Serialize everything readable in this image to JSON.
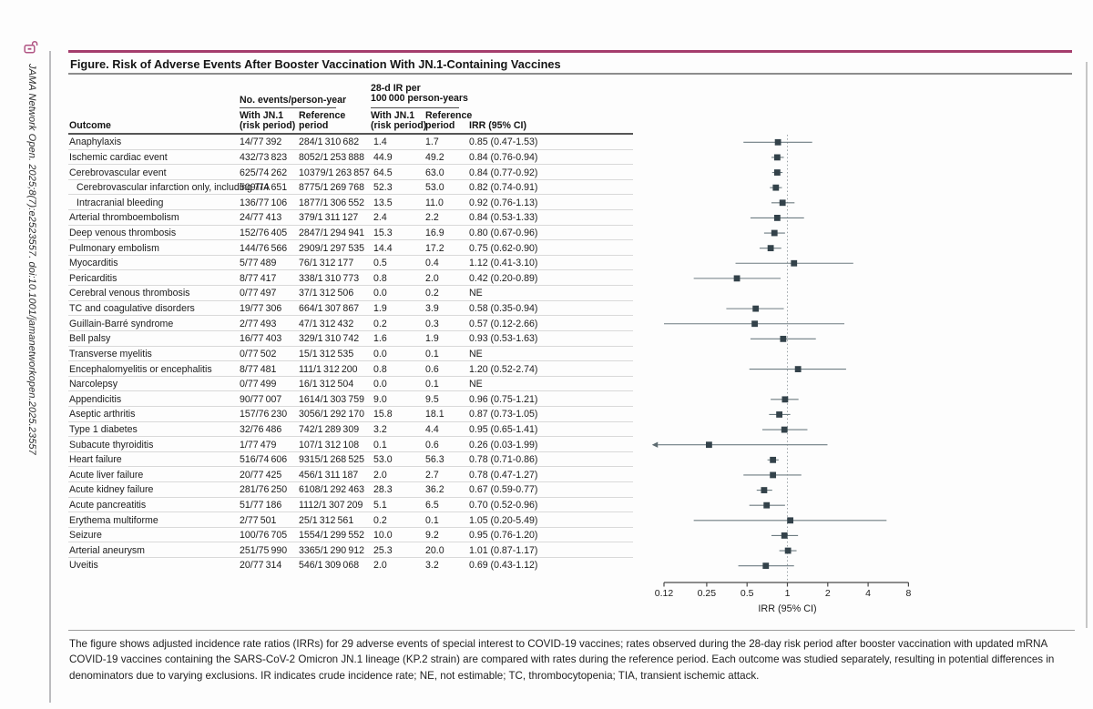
{
  "sidebar": {
    "citation": "JAMA Network Open. 2025;8(7):e2523557. doi:10.1001/jamanetworkopen.2025.23557"
  },
  "figure": {
    "title": "Figure. Risk of Adverse Events After Booster Vaccination With JN.1-Containing Vaccines",
    "accent_color": "#a43d6c"
  },
  "headers": {
    "outcome": "Outcome",
    "events_group": "No. events/person-year",
    "ir_group": "28-d IR per\n100 000 person-years",
    "with_jn1": "With JN.1\n(risk period)",
    "reference": "Reference\nperiod",
    "irr": "IRR (95% CI)"
  },
  "chart_data": {
    "type": "forest",
    "xlabel": "IRR (95% CI)",
    "x_scale": "log",
    "x_ticks": [
      0.12,
      0.25,
      0.5,
      1,
      2,
      4,
      8
    ],
    "x_range": [
      0.12,
      8
    ],
    "reference_line": 1,
    "marker_color": "#33424a",
    "ci_color": "#6e7d82",
    "rows": [
      {
        "outcome": "Anaphylaxis",
        "indent": false,
        "events_jn1": "14/77 392",
        "events_ref": "284/1 310 682",
        "ir_jn1": "1.4",
        "ir_ref": "1.7",
        "irr_label": "0.85 (0.47-1.53)",
        "irr": 0.85,
        "lo": 0.47,
        "hi": 1.53
      },
      {
        "outcome": "Ischemic cardiac event",
        "indent": false,
        "events_jn1": "432/73 823",
        "events_ref": "8052/1 253 888",
        "ir_jn1": "44.9",
        "ir_ref": "49.2",
        "irr_label": "0.84 (0.76-0.94)",
        "irr": 0.84,
        "lo": 0.76,
        "hi": 0.94
      },
      {
        "outcome": "Cerebrovascular event",
        "indent": false,
        "events_jn1": "625/74 262",
        "events_ref": "10379/1 263 857",
        "ir_jn1": "64.5",
        "ir_ref": "63.0",
        "irr_label": "0.84 (0.77-0.92)",
        "irr": 0.84,
        "lo": 0.77,
        "hi": 0.92
      },
      {
        "outcome": "Cerebrovascular infarction only, including TIA",
        "indent": true,
        "events_jn1": "509/74 651",
        "events_ref": "8775/1 269 768",
        "ir_jn1": "52.3",
        "ir_ref": "53.0",
        "irr_label": "0.82 (0.74-0.91)",
        "irr": 0.82,
        "lo": 0.74,
        "hi": 0.91
      },
      {
        "outcome": "Intracranial bleeding",
        "indent": true,
        "events_jn1": "136/77 106",
        "events_ref": "1877/1 306 552",
        "ir_jn1": "13.5",
        "ir_ref": "11.0",
        "irr_label": "0.92 (0.76-1.13)",
        "irr": 0.92,
        "lo": 0.76,
        "hi": 1.13
      },
      {
        "outcome": "Arterial thromboembolism",
        "indent": false,
        "events_jn1": "24/77 413",
        "events_ref": "379/1 311 127",
        "ir_jn1": "2.4",
        "ir_ref": "2.2",
        "irr_label": "0.84 (0.53-1.33)",
        "irr": 0.84,
        "lo": 0.53,
        "hi": 1.33
      },
      {
        "outcome": "Deep venous thrombosis",
        "indent": false,
        "events_jn1": "152/76 405",
        "events_ref": "2847/1 294 941",
        "ir_jn1": "15.3",
        "ir_ref": "16.9",
        "irr_label": "0.80 (0.67-0.96)",
        "irr": 0.8,
        "lo": 0.67,
        "hi": 0.96
      },
      {
        "outcome": "Pulmonary embolism",
        "indent": false,
        "events_jn1": "144/76 566",
        "events_ref": "2909/1 297 535",
        "ir_jn1": "14.4",
        "ir_ref": "17.2",
        "irr_label": "0.75 (0.62-0.90)",
        "irr": 0.75,
        "lo": 0.62,
        "hi": 0.9
      },
      {
        "outcome": "Myocarditis",
        "indent": false,
        "events_jn1": "5/77 489",
        "events_ref": "76/1 312 177",
        "ir_jn1": "0.5",
        "ir_ref": "0.4",
        "irr_label": "1.12 (0.41-3.10)",
        "irr": 1.12,
        "lo": 0.41,
        "hi": 3.1
      },
      {
        "outcome": "Pericarditis",
        "indent": false,
        "events_jn1": "8/77 417",
        "events_ref": "338/1 310 773",
        "ir_jn1": "0.8",
        "ir_ref": "2.0",
        "irr_label": "0.42 (0.20-0.89)",
        "irr": 0.42,
        "lo": 0.2,
        "hi": 0.89
      },
      {
        "outcome": "Cerebral venous thrombosis",
        "indent": false,
        "events_jn1": "0/77 497",
        "events_ref": "37/1 312 506",
        "ir_jn1": "0.0",
        "ir_ref": "0.2",
        "irr_label": "NE",
        "irr": null,
        "lo": null,
        "hi": null
      },
      {
        "outcome": "TC and coagulative disorders",
        "indent": false,
        "events_jn1": "19/77 306",
        "events_ref": "664/1 307 867",
        "ir_jn1": "1.9",
        "ir_ref": "3.9",
        "irr_label": "0.58 (0.35-0.94)",
        "irr": 0.58,
        "lo": 0.35,
        "hi": 0.94
      },
      {
        "outcome": "Guillain-Barré syndrome",
        "indent": false,
        "events_jn1": "2/77 493",
        "events_ref": "47/1 312 432",
        "ir_jn1": "0.2",
        "ir_ref": "0.3",
        "irr_label": "0.57 (0.12-2.66)",
        "irr": 0.57,
        "lo": 0.12,
        "hi": 2.66
      },
      {
        "outcome": "Bell palsy",
        "indent": false,
        "events_jn1": "16/77 403",
        "events_ref": "329/1 310 742",
        "ir_jn1": "1.6",
        "ir_ref": "1.9",
        "irr_label": "0.93 (0.53-1.63)",
        "irr": 0.93,
        "lo": 0.53,
        "hi": 1.63
      },
      {
        "outcome": "Transverse myelitis",
        "indent": false,
        "events_jn1": "0/77 502",
        "events_ref": "15/1 312 535",
        "ir_jn1": "0.0",
        "ir_ref": "0.1",
        "irr_label": "NE",
        "irr": null,
        "lo": null,
        "hi": null
      },
      {
        "outcome": "Encephalomyelitis or encephalitis",
        "indent": false,
        "events_jn1": "8/77 481",
        "events_ref": "111/1 312 200",
        "ir_jn1": "0.8",
        "ir_ref": "0.6",
        "irr_label": "1.20 (0.52-2.74)",
        "irr": 1.2,
        "lo": 0.52,
        "hi": 2.74
      },
      {
        "outcome": "Narcolepsy",
        "indent": false,
        "events_jn1": "0/77 499",
        "events_ref": "16/1 312 504",
        "ir_jn1": "0.0",
        "ir_ref": "0.1",
        "irr_label": "NE",
        "irr": null,
        "lo": null,
        "hi": null
      },
      {
        "outcome": "Appendicitis",
        "indent": false,
        "events_jn1": "90/77 007",
        "events_ref": "1614/1 303 759",
        "ir_jn1": "9.0",
        "ir_ref": "9.5",
        "irr_label": "0.96 (0.75-1.21)",
        "irr": 0.96,
        "lo": 0.75,
        "hi": 1.21
      },
      {
        "outcome": "Aseptic arthritis",
        "indent": false,
        "events_jn1": "157/76 230",
        "events_ref": "3056/1 292 170",
        "ir_jn1": "15.8",
        "ir_ref": "18.1",
        "irr_label": "0.87 (0.73-1.05)",
        "irr": 0.87,
        "lo": 0.73,
        "hi": 1.05
      },
      {
        "outcome": "Type 1 diabetes",
        "indent": false,
        "events_jn1": "32/76 486",
        "events_ref": "742/1 289 309",
        "ir_jn1": "3.2",
        "ir_ref": "4.4",
        "irr_label": "0.95 (0.65-1.41)",
        "irr": 0.95,
        "lo": 0.65,
        "hi": 1.41
      },
      {
        "outcome": "Subacute thyroiditis",
        "indent": false,
        "events_jn1": "1/77 479",
        "events_ref": "107/1 312 108",
        "ir_jn1": "0.1",
        "ir_ref": "0.6",
        "irr_label": "0.26 (0.03-1.99)",
        "irr": 0.26,
        "lo": 0.03,
        "hi": 1.99
      },
      {
        "outcome": "Heart failure",
        "indent": false,
        "events_jn1": "516/74 606",
        "events_ref": "9315/1 268 525",
        "ir_jn1": "53.0",
        "ir_ref": "56.3",
        "irr_label": "0.78 (0.71-0.86)",
        "irr": 0.78,
        "lo": 0.71,
        "hi": 0.86
      },
      {
        "outcome": "Acute liver failure",
        "indent": false,
        "events_jn1": "20/77 425",
        "events_ref": "456/1 311 187",
        "ir_jn1": "2.0",
        "ir_ref": "2.7",
        "irr_label": "0.78 (0.47-1.27)",
        "irr": 0.78,
        "lo": 0.47,
        "hi": 1.27
      },
      {
        "outcome": "Acute kidney failure",
        "indent": false,
        "events_jn1": "281/76 250",
        "events_ref": "6108/1 292 463",
        "ir_jn1": "28.3",
        "ir_ref": "36.2",
        "irr_label": "0.67 (0.59-0.77)",
        "irr": 0.67,
        "lo": 0.59,
        "hi": 0.77
      },
      {
        "outcome": "Acute pancreatitis",
        "indent": false,
        "events_jn1": "51/77 186",
        "events_ref": "1112/1 307 209",
        "ir_jn1": "5.1",
        "ir_ref": "6.5",
        "irr_label": "0.70 (0.52-0.96)",
        "irr": 0.7,
        "lo": 0.52,
        "hi": 0.96
      },
      {
        "outcome": "Erythema multiforme",
        "indent": false,
        "events_jn1": "2/77 501",
        "events_ref": "25/1 312 561",
        "ir_jn1": "0.2",
        "ir_ref": "0.1",
        "irr_label": "1.05 (0.20-5.49)",
        "irr": 1.05,
        "lo": 0.2,
        "hi": 5.49
      },
      {
        "outcome": "Seizure",
        "indent": false,
        "events_jn1": "100/76 705",
        "events_ref": "1554/1 299 552",
        "ir_jn1": "10.0",
        "ir_ref": "9.2",
        "irr_label": "0.95 (0.76-1.20)",
        "irr": 0.95,
        "lo": 0.76,
        "hi": 1.2
      },
      {
        "outcome": "Arterial aneurysm",
        "indent": false,
        "events_jn1": "251/75 990",
        "events_ref": "3365/1 290 912",
        "ir_jn1": "25.3",
        "ir_ref": "20.0",
        "irr_label": "1.01 (0.87-1.17)",
        "irr": 1.01,
        "lo": 0.87,
        "hi": 1.17
      },
      {
        "outcome": "Uveitis",
        "indent": false,
        "events_jn1": "20/77 314",
        "events_ref": "546/1 309 068",
        "ir_jn1": "2.0",
        "ir_ref": "3.2",
        "irr_label": "0.69 (0.43-1.12)",
        "irr": 0.69,
        "lo": 0.43,
        "hi": 1.12
      }
    ]
  },
  "caption": "The figure shows adjusted incidence rate ratios (IRRs) for 29 adverse events of special interest to COVID-19 vaccines; rates observed during the 28-day risk period after booster vaccination with updated mRNA COVID-19 vaccines containing the SARS-CoV-2 Omicron JN.1 lineage (KP.2 strain) are compared with rates during the reference period. Each outcome was studied separately, resulting in potential differences in denominators due to varying exclusions. IR indicates crude incidence rate; NE, not estimable; TC, thrombocytopenia; TIA, transient ischemic attack."
}
